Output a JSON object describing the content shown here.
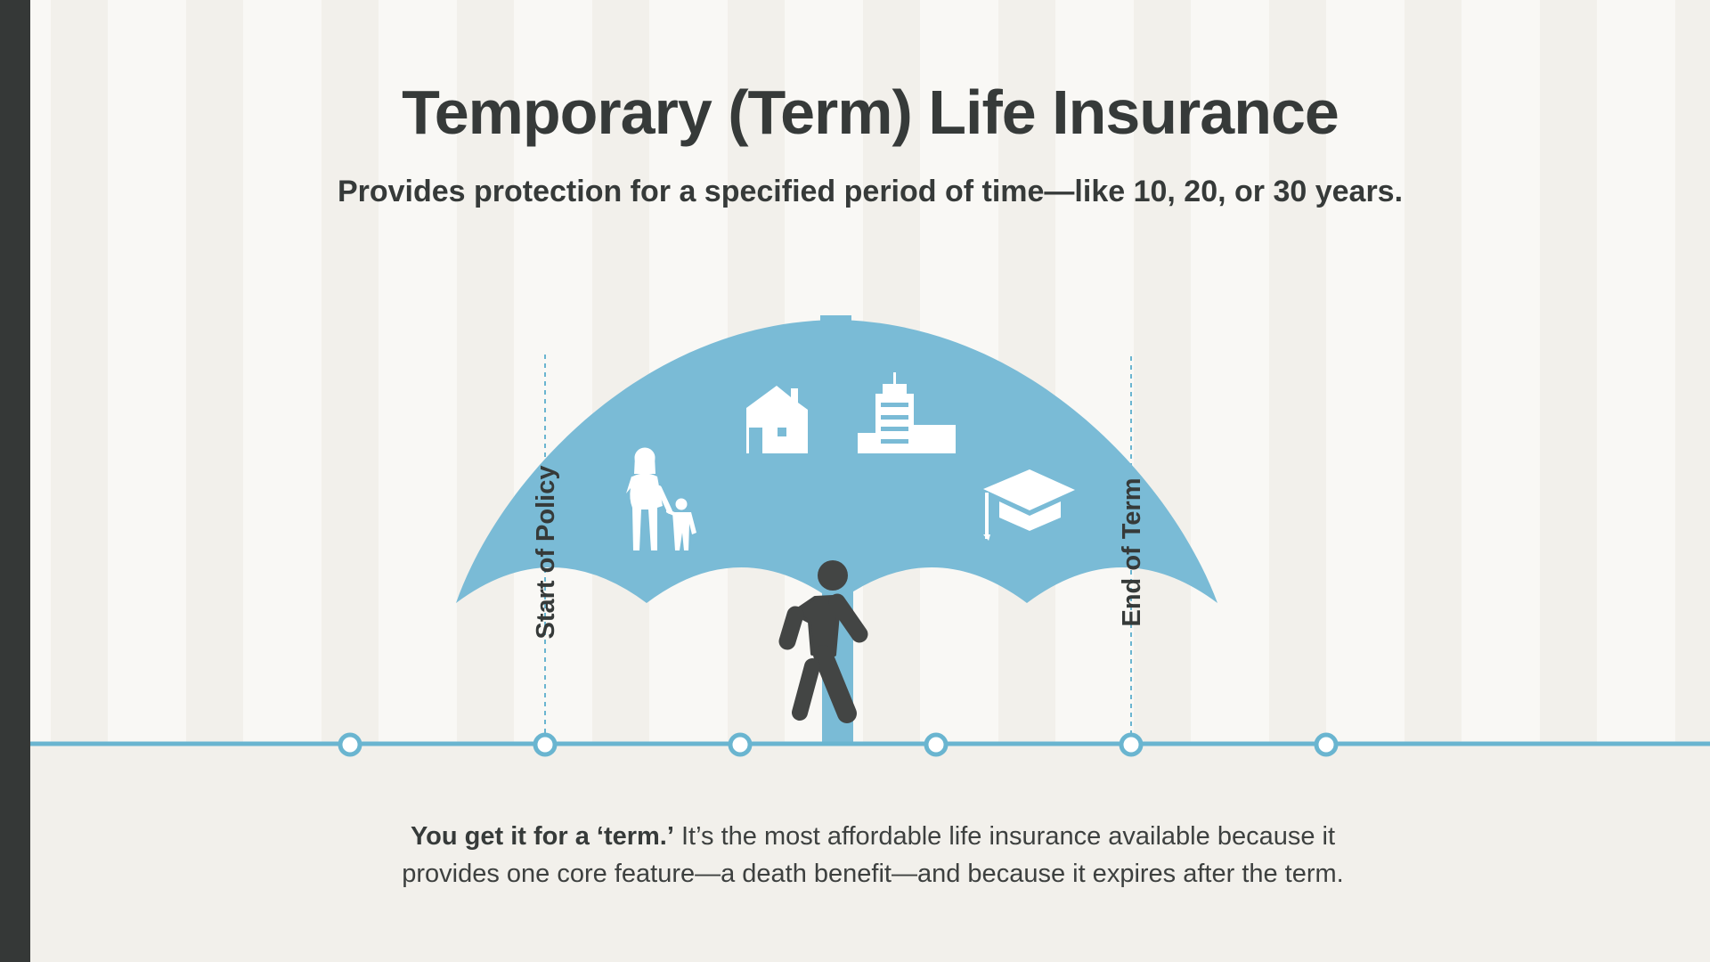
{
  "title": "Temporary (Term) Life Insurance",
  "subtitle": "Provides protection for a specified period of time—like 10, 20, or 30 years.",
  "diagram": {
    "start_label": "Start of Policy",
    "end_label": "End of Term",
    "icons": [
      "family-icon",
      "house-icon",
      "building-icon",
      "graduation-cap-icon",
      "walking-person-icon",
      "umbrella-icon"
    ],
    "colors": {
      "umbrella": "#7abbd6",
      "timeline": "#6ab5d0",
      "person": "#434544",
      "dark": "#363a39"
    }
  },
  "description": {
    "lead": "You get it for a ‘term.’",
    "line1_rest": " It’s the most affordable life insurance available because it",
    "line2": "provides one core feature—a death benefit—and because it expires after the term."
  }
}
